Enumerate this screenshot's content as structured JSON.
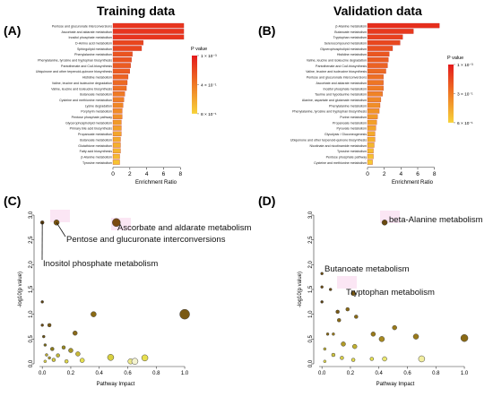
{
  "headers": {
    "left": "Training data",
    "right": "Validation data"
  },
  "panel_letters": [
    "(A)",
    "(B)",
    "(C)",
    "(D)"
  ],
  "chart_data": [
    {
      "type": "bar",
      "panel": "(A)",
      "xlabel": "Enrichment Ratio",
      "xlim": [
        0,
        8.5
      ],
      "xticks": [
        0,
        2,
        4,
        6,
        8
      ],
      "legend": {
        "title": "P value",
        "ticks": [
          "1 × 10⁻³",
          "4 × 10⁻¹",
          "8 × 10⁻¹"
        ],
        "placement": "right"
      },
      "categories": [
        "Pentose and glucuronate interconversions",
        "Ascorbate and aldarate metabolism",
        "Inositol phosphate metabolism",
        "D-Amino acid metabolism",
        "Sphingolipid metabolism",
        "Phenylalanine metabolism",
        "Phenylalanine, tyrosine and tryptophan biosynthesis",
        "Pantothenate and CoA biosynthesis",
        "Ubiquinone and other terpenoid-quinone biosynthesis",
        "Histidine metabolism",
        "Valine, leucine and isoleucine degradation",
        "Valine, leucine and isoleucine biosynthesis",
        "Butanoate metabolism",
        "Cysteine and methionine metabolism",
        "Lysine degradation",
        "Porphyrin metabolism",
        "Pentose phosphate pathway",
        "Glycerophospholipid metabolism",
        "Primary bile acid biosynthesis",
        "Propanoate metabolism",
        "Butanoate metabolism",
        "Glutathione metabolism",
        "Fatty acid biosynthesis",
        "β-Alanine metabolism",
        "Tyrosine metabolism"
      ],
      "values": [
        8.4,
        8.4,
        8.4,
        3.6,
        3.4,
        2.3,
        2.2,
        2.1,
        2.0,
        1.8,
        1.7,
        1.6,
        1.4,
        1.3,
        1.2,
        1.1,
        1.1,
        1.0,
        1.0,
        1.0,
        0.9,
        0.9,
        0.9,
        0.8,
        0.8
      ],
      "colors": [
        "#e8351e",
        "#e8351e",
        "#e8351e",
        "#e9461e",
        "#e9461e",
        "#ea5420",
        "#ea5420",
        "#eb5c21",
        "#eb5c21",
        "#ec6322",
        "#ec6a22",
        "#ed6f23",
        "#ee7a24",
        "#ee7f25",
        "#ef8626",
        "#f08c27",
        "#f09128",
        "#f19a29",
        "#f2a02a",
        "#f2a52b",
        "#f3aa2c",
        "#f4b02d",
        "#f4b52e",
        "#f5ba2f",
        "#f6c232"
      ]
    },
    {
      "type": "bar",
      "panel": "(B)",
      "xlabel": "Enrichment Ratio",
      "xlim": [
        0,
        9
      ],
      "xticks": [
        0,
        2,
        4,
        6,
        8
      ],
      "legend": {
        "title": "P value",
        "ticks": [
          "1 × 10⁻³",
          "3 × 10⁻¹",
          "6 × 10⁻¹"
        ],
        "placement": "right"
      },
      "categories": [
        "β-Alanine metabolism",
        "Butanoate metabolism",
        "Tryptophan metabolism",
        "Selenocompound metabolism",
        "Glycerophospholipid metabolism",
        "Histidine metabolism",
        "Valine, leucine and isoleucine degradation",
        "Pantothenate and CoA biosynthesis",
        "Valine, leucine and isoleucine biosynthesis",
        "Pentose and glucuronate interconversions",
        "Ascorbate and aldarate metabolism",
        "Inositol phosphate metabolism",
        "Taurine and hypotaurine metabolism",
        "Alanine, aspartate and glutamate metabolism",
        "Phenylalanine metabolism",
        "Phenylalanine, tyrosine and tryptophan biosynthesis",
        "Purine metabolism",
        "Propanoate metabolism",
        "Pyruvate metabolism",
        "Glycolysis / Gluconeogenesis",
        "Ubiquinone and other terpenoid-quinone biosynthesis",
        "Nicotinate and nicotinamide metabolism",
        "Tyrosine metabolism",
        "Pentose phosphate pathway",
        "Cysteine and methionine metabolism"
      ],
      "values": [
        8.6,
        5.5,
        4.2,
        3.9,
        3.0,
        2.6,
        2.5,
        2.4,
        2.2,
        1.9,
        1.9,
        1.9,
        1.8,
        1.6,
        1.5,
        1.4,
        1.2,
        1.1,
        1.0,
        0.9,
        0.9,
        0.8,
        0.7,
        0.7,
        0.6
      ],
      "colors": [
        "#e62e1c",
        "#e7391d",
        "#e8401e",
        "#e8471e",
        "#e9501f",
        "#ea5620",
        "#ea5c21",
        "#eb6222",
        "#ec6a22",
        "#ed7123",
        "#ed7624",
        "#ee7b25",
        "#ef8326",
        "#ef8827",
        "#f08e28",
        "#f09428",
        "#f19a29",
        "#f2a02a",
        "#f2a52b",
        "#f3ab2c",
        "#f4b12d",
        "#f4b72e",
        "#f5bc30",
        "#f6c232",
        "#f7c934"
      ]
    },
    {
      "type": "scatter",
      "panel": "(C)",
      "xlabel": "Pathway Impact",
      "ylabel": "-log10(p value)",
      "xlim": [
        -0.02,
        1.05
      ],
      "ylim": [
        0,
        3.0
      ],
      "xticks": [
        0.0,
        0.2,
        0.4,
        0.6,
        0.8,
        1.0
      ],
      "yticks": [
        0.0,
        0.5,
        1.0,
        1.5,
        2.0,
        2.5,
        3.0
      ],
      "annotations": [
        "Ascorbate and aldarate metabolism",
        "Pentose and glucuronate interconversions",
        "Inositol phosphate metabolism"
      ],
      "points": [
        {
          "x": 0.0,
          "y": 2.85,
          "size": 2,
          "color": "#5a3a08"
        },
        {
          "x": 0.1,
          "y": 2.85,
          "size": 3,
          "color": "#7a5410"
        },
        {
          "x": 0.52,
          "y": 2.85,
          "size": 4.5,
          "color": "#7a4a10"
        },
        {
          "x": 1.0,
          "y": 1.0,
          "size": 5.5,
          "color": "#7a5a14"
        },
        {
          "x": 0.36,
          "y": 1.0,
          "size": 3,
          "color": "#8a6a14"
        },
        {
          "x": 0.0,
          "y": 1.25,
          "size": 1.5,
          "color": "#5a4010"
        },
        {
          "x": 0.0,
          "y": 0.78,
          "size": 1.5,
          "color": "#6a4a10"
        },
        {
          "x": 0.05,
          "y": 0.78,
          "size": 2,
          "color": "#7a5a14"
        },
        {
          "x": 0.23,
          "y": 0.62,
          "size": 2.5,
          "color": "#8a6a1a"
        },
        {
          "x": 0.01,
          "y": 0.55,
          "size": 1.5,
          "color": "#6a5212"
        },
        {
          "x": 0.02,
          "y": 0.38,
          "size": 1.5,
          "color": "#7a6a18"
        },
        {
          "x": 0.07,
          "y": 0.3,
          "size": 2,
          "color": "#8a7a1a"
        },
        {
          "x": 0.15,
          "y": 0.33,
          "size": 2,
          "color": "#9a8a20"
        },
        {
          "x": 0.2,
          "y": 0.27,
          "size": 2.5,
          "color": "#a89828"
        },
        {
          "x": 0.03,
          "y": 0.18,
          "size": 1.5,
          "color": "#b8a830"
        },
        {
          "x": 0.11,
          "y": 0.17,
          "size": 2,
          "color": "#c2b838"
        },
        {
          "x": 0.08,
          "y": 0.08,
          "size": 2,
          "color": "#d2c840"
        },
        {
          "x": 0.02,
          "y": 0.05,
          "size": 1.5,
          "color": "#dcd24a"
        },
        {
          "x": 0.17,
          "y": 0.05,
          "size": 2,
          "color": "#e0d84e"
        },
        {
          "x": 0.28,
          "y": 0.07,
          "size": 2.5,
          "color": "#e6e050"
        },
        {
          "x": 0.62,
          "y": 0.05,
          "size": 3,
          "color": "#ece88a"
        },
        {
          "x": 0.65,
          "y": 0.05,
          "size": 3.5,
          "color": "#f4f3d0"
        },
        {
          "x": 0.72,
          "y": 0.12,
          "size": 3.5,
          "color": "#e8e050"
        },
        {
          "x": 0.48,
          "y": 0.13,
          "size": 3.5,
          "color": "#d8d040"
        },
        {
          "x": 0.25,
          "y": 0.2,
          "size": 2.5,
          "color": "#c8b838"
        },
        {
          "x": 0.05,
          "y": 0.12,
          "size": 1.5,
          "color": "#aa9a2a"
        }
      ]
    },
    {
      "type": "scatter",
      "panel": "(D)",
      "xlabel": "Pathway Impact",
      "ylabel": "-log10(p value)",
      "xlim": [
        -0.02,
        1.05
      ],
      "ylim": [
        0,
        3.0
      ],
      "xticks": [
        0.0,
        0.2,
        0.4,
        0.6,
        0.8,
        1.0
      ],
      "yticks": [
        0.0,
        0.5,
        1.0,
        1.5,
        2.0,
        2.5,
        3.0
      ],
      "annotations": [
        "beta-Alanine metabolism",
        "Butanoate metabolism",
        "Tryptophan metabolism"
      ],
      "points": [
        {
          "x": 0.44,
          "y": 2.85,
          "size": 3,
          "color": "#6a4a10"
        },
        {
          "x": 0.0,
          "y": 1.82,
          "size": 1.5,
          "color": "#6a4a10"
        },
        {
          "x": 0.22,
          "y": 1.42,
          "size": 2.5,
          "color": "#7a5a14"
        },
        {
          "x": 0.0,
          "y": 1.25,
          "size": 1.5,
          "color": "#5a4010"
        },
        {
          "x": 0.0,
          "y": 1.55,
          "size": 1.5,
          "color": "#6a4a10"
        },
        {
          "x": 0.06,
          "y": 1.5,
          "size": 1.5,
          "color": "#6a4a10"
        },
        {
          "x": 0.18,
          "y": 1.1,
          "size": 2,
          "color": "#8a6a14"
        },
        {
          "x": 0.24,
          "y": 0.95,
          "size": 2,
          "color": "#8a6a14"
        },
        {
          "x": 0.11,
          "y": 1.05,
          "size": 2,
          "color": "#7a5a14"
        },
        {
          "x": 0.12,
          "y": 0.88,
          "size": 2,
          "color": "#8a6a14"
        },
        {
          "x": 0.36,
          "y": 0.6,
          "size": 2.5,
          "color": "#9a7a1a"
        },
        {
          "x": 0.51,
          "y": 0.73,
          "size": 2.5,
          "color": "#9a7a1a"
        },
        {
          "x": 0.66,
          "y": 0.55,
          "size": 3,
          "color": "#9a7a1a"
        },
        {
          "x": 1.0,
          "y": 0.52,
          "size": 4,
          "color": "#8a6a14"
        },
        {
          "x": 0.42,
          "y": 0.5,
          "size": 3,
          "color": "#a88a20"
        },
        {
          "x": 0.04,
          "y": 0.6,
          "size": 1.5,
          "color": "#8a6a14"
        },
        {
          "x": 0.08,
          "y": 0.6,
          "size": 1.5,
          "color": "#9a7a1a"
        },
        {
          "x": 0.15,
          "y": 0.4,
          "size": 2.5,
          "color": "#b09a28"
        },
        {
          "x": 0.23,
          "y": 0.35,
          "size": 2.5,
          "color": "#c0b030"
        },
        {
          "x": 0.02,
          "y": 0.3,
          "size": 1.5,
          "color": "#c2b438"
        },
        {
          "x": 0.08,
          "y": 0.18,
          "size": 2,
          "color": "#d0c440"
        },
        {
          "x": 0.14,
          "y": 0.12,
          "size": 2,
          "color": "#d8ce48"
        },
        {
          "x": 0.22,
          "y": 0.08,
          "size": 2,
          "color": "#e2da50"
        },
        {
          "x": 0.35,
          "y": 0.1,
          "size": 2,
          "color": "#e6e050"
        },
        {
          "x": 0.44,
          "y": 0.1,
          "size": 2.5,
          "color": "#ece870"
        },
        {
          "x": 0.7,
          "y": 0.1,
          "size": 3.5,
          "color": "#f2eea0"
        },
        {
          "x": 0.02,
          "y": 0.05,
          "size": 1.5,
          "color": "#e0d84e"
        }
      ]
    }
  ]
}
